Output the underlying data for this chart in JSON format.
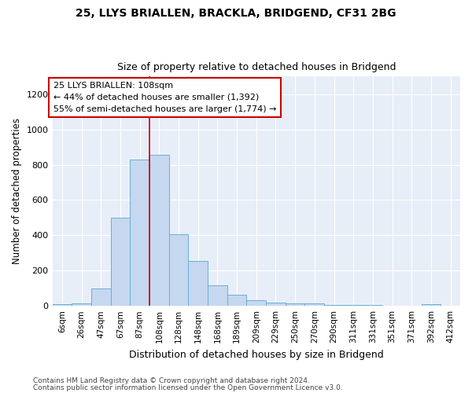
{
  "title1": "25, LLYS BRIALLEN, BRACKLA, BRIDGEND, CF31 2BG",
  "title2": "Size of property relative to detached houses in Bridgend",
  "xlabel": "Distribution of detached houses by size in Bridgend",
  "ylabel": "Number of detached properties",
  "footnote1": "Contains HM Land Registry data © Crown copyright and database right 2024.",
  "footnote2": "Contains public sector information licensed under the Open Government Licence v3.0.",
  "bar_labels": [
    "6sqm",
    "26sqm",
    "47sqm",
    "67sqm",
    "87sqm",
    "108sqm",
    "128sqm",
    "148sqm",
    "168sqm",
    "189sqm",
    "209sqm",
    "229sqm",
    "250sqm",
    "270sqm",
    "290sqm",
    "311sqm",
    "331sqm",
    "351sqm",
    "371sqm",
    "392sqm",
    "412sqm"
  ],
  "bar_values": [
    8,
    12,
    100,
    500,
    830,
    855,
    405,
    255,
    115,
    65,
    30,
    20,
    13,
    13,
    5,
    5,
    5,
    3,
    3,
    10,
    3
  ],
  "bar_color": "#c5d8f0",
  "bar_edge_color": "#6aaed6",
  "property_label": "25 LLYS BRIALLEN: 108sqm",
  "annotation_line1": "← 44% of detached houses are smaller (1,392)",
  "annotation_line2": "55% of semi-detached houses are larger (1,774) →",
  "annotation_box_color": "#ffffff",
  "annotation_box_edge_color": "#cc0000",
  "vline_color": "#cc0000",
  "vline_x_index": 5,
  "ylim": [
    0,
    1300
  ],
  "yticks": [
    0,
    200,
    400,
    600,
    800,
    1000,
    1200
  ],
  "background_color": "#ffffff",
  "plot_background": "#e8eef8"
}
